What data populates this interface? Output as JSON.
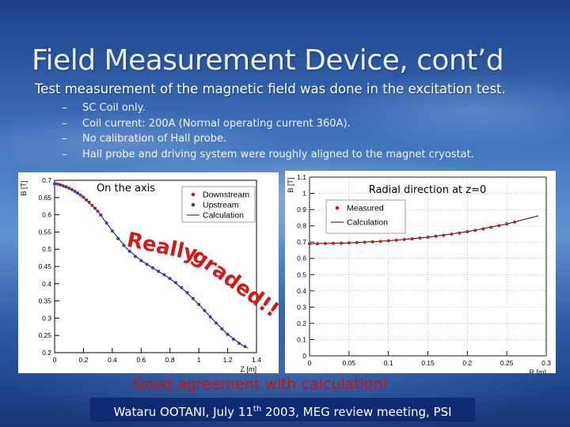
{
  "slide": {
    "title": "Field Measurement Device, cont’d",
    "subtitle": "Test measurement of the magnetic field was done in the excitation test.",
    "bullets": [
      {
        "dash": "–",
        "text": "SC Coil only."
      },
      {
        "dash": "–",
        "text": "Coil current: 200A (Normal operating current 360A)."
      },
      {
        "dash": "–",
        "text": "No calibration of Hall probe."
      },
      {
        "dash": "–",
        "text": "Hall probe and driving system were roughly aligned to the magnet cryostat."
      }
    ],
    "agreement": "Good agreement with calculation!",
    "footer": {
      "author": "Wataru OOTANI, July 11",
      "sup": "th",
      "rest": " 2003,  MEG review meeting, PSI"
    },
    "overlay_text": {
      "line1": "Really",
      "line2": "graded!!"
    },
    "colors": {
      "red": "#d11a1a",
      "blue": "#1f3fd8",
      "agree": "#cc1111",
      "footer_bg": "#0e2a73"
    }
  },
  "chart_data": [
    {
      "type": "scatter",
      "title": "On the axis",
      "ylabel": "B [T]",
      "xlabel": "Z [m]",
      "xlim": [
        0,
        1.4
      ],
      "ylim": [
        0.2,
        0.7
      ],
      "xticks": [
        "0",
        "0.2",
        "0.4",
        "0.6",
        "0.8",
        "1",
        "1.2",
        "1.4"
      ],
      "yticks": [
        "0.2",
        "0.25",
        "0.3",
        "0.35",
        "0.4",
        "0.45",
        "0.5",
        "0.55",
        "0.6",
        "0.65",
        "0.7"
      ],
      "legend": [
        "Downstream",
        "Upstream",
        "Calculation"
      ],
      "series": [
        {
          "name": "Downstream",
          "marker": "red-dot",
          "x": [
            0.02,
            0.06,
            0.1,
            0.14,
            0.18,
            0.22,
            0.26,
            0.3
          ],
          "y": [
            0.689,
            0.684,
            0.677,
            0.668,
            0.657,
            0.643,
            0.627,
            0.61
          ]
        },
        {
          "name": "Upstream",
          "marker": "blue-dot",
          "x": [
            0.0,
            0.04,
            0.08,
            0.12,
            0.16,
            0.2,
            0.24,
            0.28,
            0.32,
            0.36,
            0.4,
            0.44,
            0.48,
            0.52,
            0.56,
            0.6,
            0.64,
            0.68,
            0.72,
            0.76,
            0.8,
            0.84,
            0.88,
            0.92,
            0.96,
            1.0,
            1.04,
            1.08,
            1.12,
            1.16,
            1.2,
            1.24,
            1.28,
            1.32
          ],
          "y": [
            0.69,
            0.687,
            0.681,
            0.673,
            0.663,
            0.651,
            0.636,
            0.619,
            0.599,
            0.576,
            0.553,
            0.531,
            0.511,
            0.494,
            0.479,
            0.467,
            0.456,
            0.446,
            0.436,
            0.426,
            0.415,
            0.403,
            0.389,
            0.374,
            0.357,
            0.34,
            0.322,
            0.304,
            0.286,
            0.269,
            0.253,
            0.239,
            0.227,
            0.218
          ]
        },
        {
          "name": "Calculation",
          "marker": "line",
          "x": [
            0.0,
            0.1,
            0.2,
            0.3,
            0.4,
            0.5,
            0.6,
            0.7,
            0.8,
            0.9,
            1.0,
            1.1,
            1.2,
            1.3,
            1.34
          ],
          "y": [
            0.69,
            0.677,
            0.651,
            0.61,
            0.553,
            0.502,
            0.467,
            0.441,
            0.415,
            0.381,
            0.34,
            0.295,
            0.253,
            0.222,
            0.213
          ]
        }
      ]
    },
    {
      "type": "scatter",
      "title": "Radial direction at z=0",
      "ylabel": "B [T]",
      "xlabel": "R [m]",
      "xlim": [
        0,
        0.3
      ],
      "ylim": [
        0,
        1.1
      ],
      "xticks": [
        "0",
        "0.05",
        "0.1",
        "0.15",
        "0.2",
        "0.25",
        "0.3"
      ],
      "yticks": [
        "0",
        "0.1",
        "0.2",
        "0.3",
        "0.4",
        "0.5",
        "0.6",
        "0.7",
        "0.8",
        "0.9",
        "1",
        "1.1"
      ],
      "legend": [
        "Measured",
        "Calculation"
      ],
      "series": [
        {
          "name": "Measured",
          "marker": "red-dot",
          "x": [
            0.0,
            0.01,
            0.02,
            0.03,
            0.04,
            0.05,
            0.06,
            0.07,
            0.08,
            0.09,
            0.1,
            0.11,
            0.12,
            0.13,
            0.14,
            0.15,
            0.16,
            0.17,
            0.18,
            0.19,
            0.2,
            0.21,
            0.22,
            0.23,
            0.24,
            0.25,
            0.26
          ],
          "y": [
            0.69,
            0.69,
            0.691,
            0.692,
            0.693,
            0.695,
            0.697,
            0.699,
            0.702,
            0.705,
            0.708,
            0.712,
            0.716,
            0.72,
            0.725,
            0.73,
            0.736,
            0.742,
            0.749,
            0.756,
            0.764,
            0.772,
            0.781,
            0.791,
            0.801,
            0.812,
            0.823
          ]
        },
        {
          "name": "Calculation",
          "marker": "line",
          "x": [
            0.0,
            0.05,
            0.1,
            0.15,
            0.2,
            0.25,
            0.29
          ],
          "y": [
            0.69,
            0.695,
            0.708,
            0.73,
            0.764,
            0.812,
            0.862
          ]
        }
      ]
    }
  ]
}
